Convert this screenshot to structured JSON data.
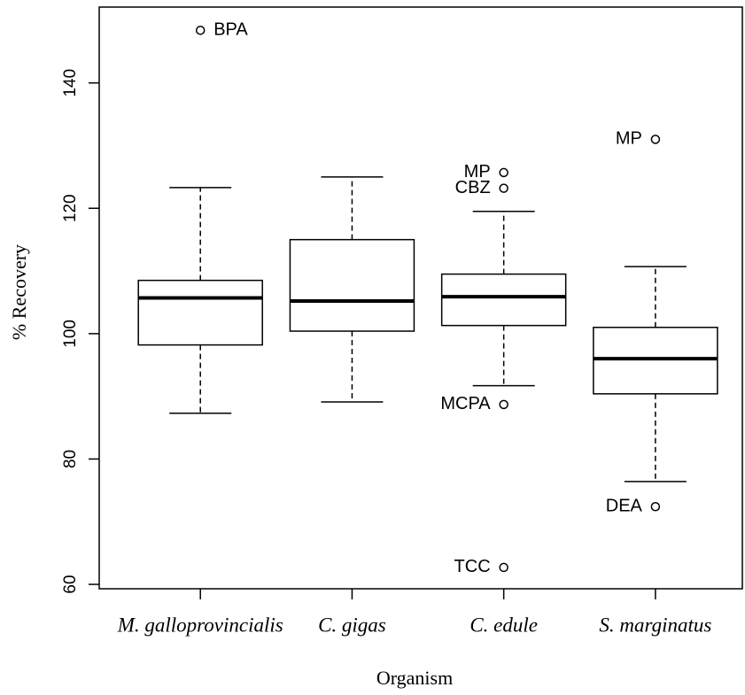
{
  "chart_data": {
    "type": "box",
    "x_label": "Organism",
    "y_label": "% Recovery",
    "categories": [
      "M. galloprovincialis",
      "C. gigas",
      "C. edule",
      "S. marginatus"
    ],
    "boxes": [
      {
        "whisker_low": 87.3,
        "q1": 98.2,
        "median": 105.7,
        "q3": 108.5,
        "whisker_high": 123.3,
        "outliers": [
          {
            "value": 148.4,
            "label": "BPA"
          }
        ]
      },
      {
        "whisker_low": 89.1,
        "q1": 100.4,
        "median": 105.2,
        "q3": 115.0,
        "whisker_high": 125.0,
        "outliers": []
      },
      {
        "whisker_low": 91.7,
        "q1": 101.3,
        "median": 105.9,
        "q3": 109.5,
        "whisker_high": 119.5,
        "outliers": [
          {
            "value": 125.7,
            "label": "MP"
          },
          {
            "value": 123.2,
            "label": "CBZ"
          },
          {
            "value": 88.7,
            "label": "MCPA"
          },
          {
            "value": 62.7,
            "label": "TCC"
          }
        ]
      },
      {
        "whisker_low": 76.4,
        "q1": 90.4,
        "median": 96.0,
        "q3": 101.0,
        "whisker_high": 110.7,
        "outliers": [
          {
            "value": 131.0,
            "label": "MP"
          },
          {
            "value": 72.4,
            "label": "DEA"
          }
        ]
      }
    ],
    "color": "#000000",
    "ylim": [
      59.3,
      152.1
    ],
    "yticks": [
      60,
      80,
      100,
      120,
      140
    ]
  }
}
